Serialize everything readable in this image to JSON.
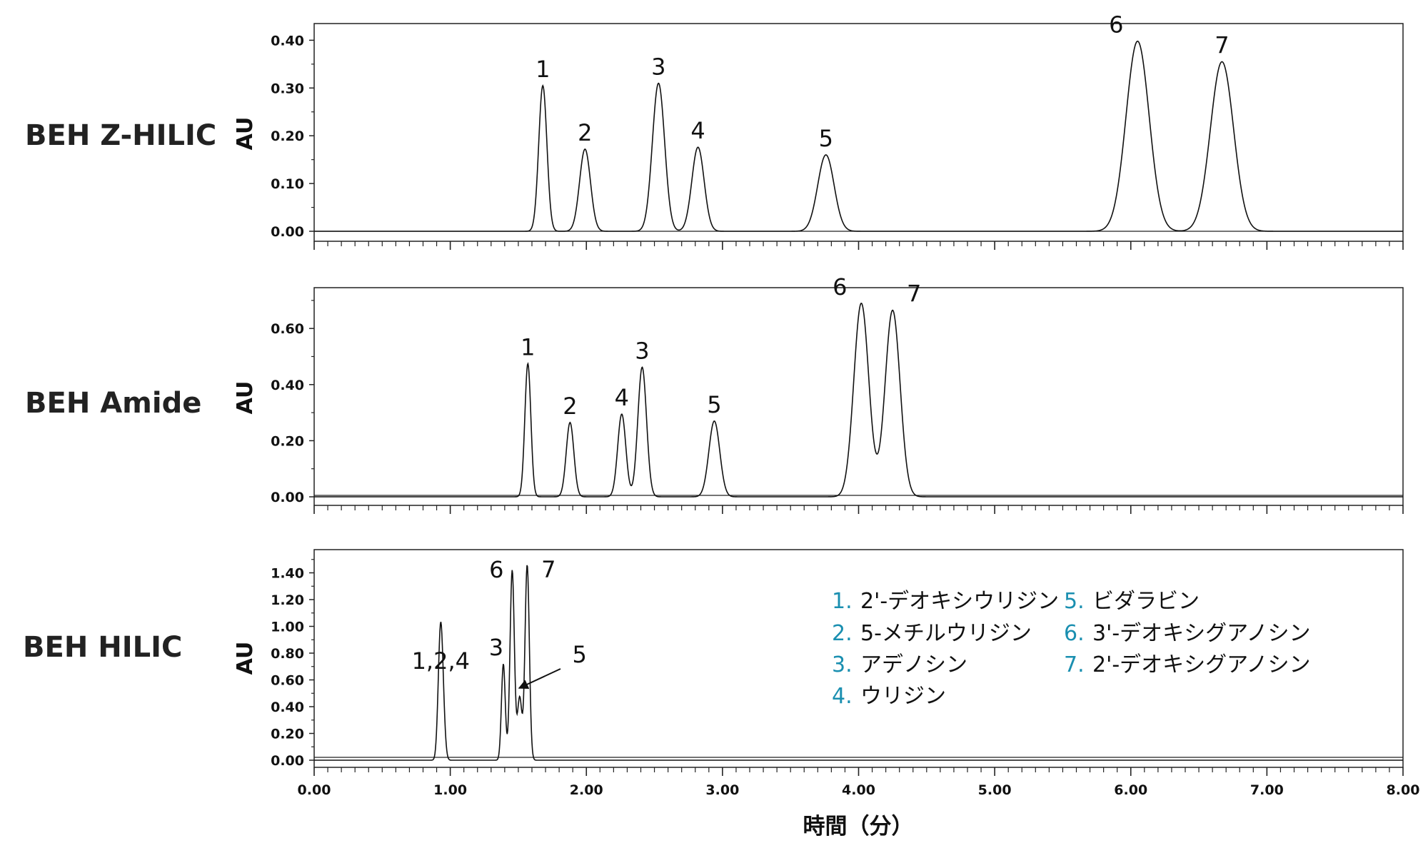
{
  "legend_color": "#1a8fb0",
  "trace_color": "#111111",
  "chart_data": [
    {
      "type": "line",
      "column_label": "BEH Z-HILIC",
      "ylabel": "AU",
      "xlim": [
        0,
        8
      ],
      "ylim": [
        0,
        0.42
      ],
      "yticks": [
        "0.00",
        "0.10",
        "0.20",
        "0.30",
        "0.40"
      ],
      "peaks": [
        {
          "label": "1",
          "rt": 1.68,
          "height": 0.305,
          "width": 0.03
        },
        {
          "label": "2",
          "rt": 1.99,
          "height": 0.172,
          "width": 0.04
        },
        {
          "label": "3",
          "rt": 2.53,
          "height": 0.31,
          "width": 0.045
        },
        {
          "label": "4",
          "rt": 2.82,
          "height": 0.176,
          "width": 0.045
        },
        {
          "label": "5",
          "rt": 3.76,
          "height": 0.16,
          "width": 0.06
        },
        {
          "label": "6",
          "rt": 6.05,
          "height": 0.398,
          "width": 0.085
        },
        {
          "label": "7",
          "rt": 6.67,
          "height": 0.355,
          "width": 0.085
        }
      ]
    },
    {
      "type": "line",
      "column_label": "BEH Amide",
      "ylabel": "AU",
      "xlim": [
        0,
        8
      ],
      "ylim": [
        0,
        0.72
      ],
      "yticks": [
        "0.00",
        "0.20",
        "0.40",
        "0.60"
      ],
      "peaks": [
        {
          "label": "1",
          "rt": 1.57,
          "height": 0.475,
          "width": 0.022
        },
        {
          "label": "2",
          "rt": 1.88,
          "height": 0.265,
          "width": 0.028
        },
        {
          "label": "4",
          "rt": 2.26,
          "height": 0.295,
          "width": 0.03
        },
        {
          "label": "3",
          "rt": 2.41,
          "height": 0.462,
          "width": 0.032
        },
        {
          "label": "5",
          "rt": 2.94,
          "height": 0.27,
          "width": 0.04
        },
        {
          "label": "6",
          "rt": 4.02,
          "height": 0.69,
          "width": 0.055
        },
        {
          "label": "7",
          "rt": 4.25,
          "height": 0.665,
          "width": 0.055
        }
      ]
    },
    {
      "type": "line",
      "column_label": "BEH HILIC",
      "ylabel": "AU",
      "xlabel": "時間（分）",
      "xlim": [
        0,
        8
      ],
      "ylim": [
        0,
        1.52
      ],
      "yticks": [
        "0.00",
        "0.20",
        "0.40",
        "0.60",
        "0.80",
        "1.00",
        "1.20",
        "1.40"
      ],
      "xticks": [
        "0.00",
        "1.00",
        "2.00",
        "3.00",
        "4.00",
        "5.00",
        "6.00",
        "7.00",
        "8.00"
      ],
      "peaks": [
        {
          "label": "1,2,4",
          "rt": 0.93,
          "height": 0.62,
          "width": 0.014
        },
        {
          "label": "",
          "rt": 0.915,
          "height": 0.3,
          "width": 0.014
        },
        {
          "label": "",
          "rt": 0.945,
          "height": 0.38,
          "width": 0.016
        },
        {
          "label": "3",
          "rt": 1.39,
          "height": 0.72,
          "width": 0.014
        },
        {
          "label": "6",
          "rt": 1.455,
          "height": 1.42,
          "width": 0.016
        },
        {
          "label": "5",
          "rt": 1.51,
          "height": 0.47,
          "width": 0.016
        },
        {
          "label": "7",
          "rt": 1.565,
          "height": 1.46,
          "width": 0.016
        }
      ]
    }
  ],
  "legend": [
    {
      "num": "1.",
      "name": "2'-デオキシウリジン"
    },
    {
      "num": "2.",
      "name": "5-メチルウリジン"
    },
    {
      "num": "3.",
      "name": "アデノシン"
    },
    {
      "num": "4.",
      "name": "ウリジン"
    },
    {
      "num": "5.",
      "name": "ビダラビン"
    },
    {
      "num": "6.",
      "name": "3'-デオキシグアノシン"
    },
    {
      "num": "7.",
      "name": "2'-デオキシグアノシン"
    }
  ]
}
